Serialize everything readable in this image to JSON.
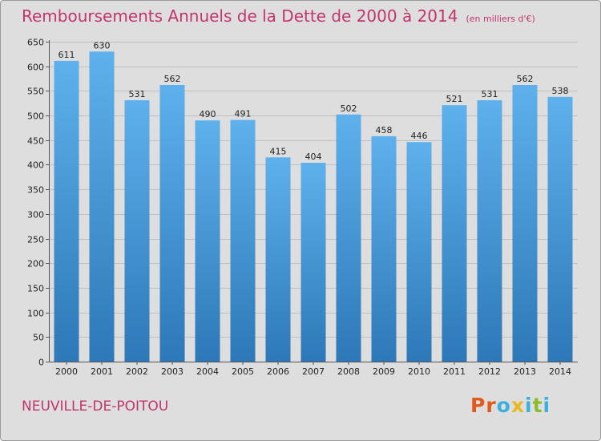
{
  "header": {
    "title": "Remboursements Annuels de la Dette de 2000 à 2014",
    "unit": "(en milliers d'€)"
  },
  "footer": {
    "town": "NEUVILLE-DE-POITOU",
    "logo_letters": [
      "P",
      "r",
      "o",
      "x",
      "i",
      "t",
      "i"
    ]
  },
  "colors": {
    "bar_light": "#5eb1ec",
    "bar_dark": "#2d78b8",
    "title": "#c2346e",
    "grid": "#bfbfbf",
    "background": "#dedede",
    "logo": [
      "#e05a1b",
      "#e05a1b",
      "#3bb0df",
      "#e8b820",
      "#3bb0df",
      "#8bbd2a",
      "#3bb0df"
    ]
  },
  "chart_data": {
    "type": "bar",
    "title": "Remboursements Annuels de la Dette de 2000 à 2014",
    "unit": "(en milliers d'€)",
    "categories": [
      "2000",
      "2001",
      "2002",
      "2003",
      "2004",
      "2005",
      "2006",
      "2007",
      "2008",
      "2009",
      "2010",
      "2011",
      "2012",
      "2013",
      "2014"
    ],
    "values": [
      611,
      630,
      531,
      562,
      490,
      491,
      415,
      404,
      502,
      458,
      446,
      521,
      531,
      562,
      538
    ],
    "ylim": [
      0,
      650
    ],
    "yticks": [
      0,
      50,
      100,
      150,
      200,
      250,
      300,
      350,
      400,
      450,
      500,
      550,
      600,
      650
    ],
    "grid": true,
    "legend": "none"
  }
}
